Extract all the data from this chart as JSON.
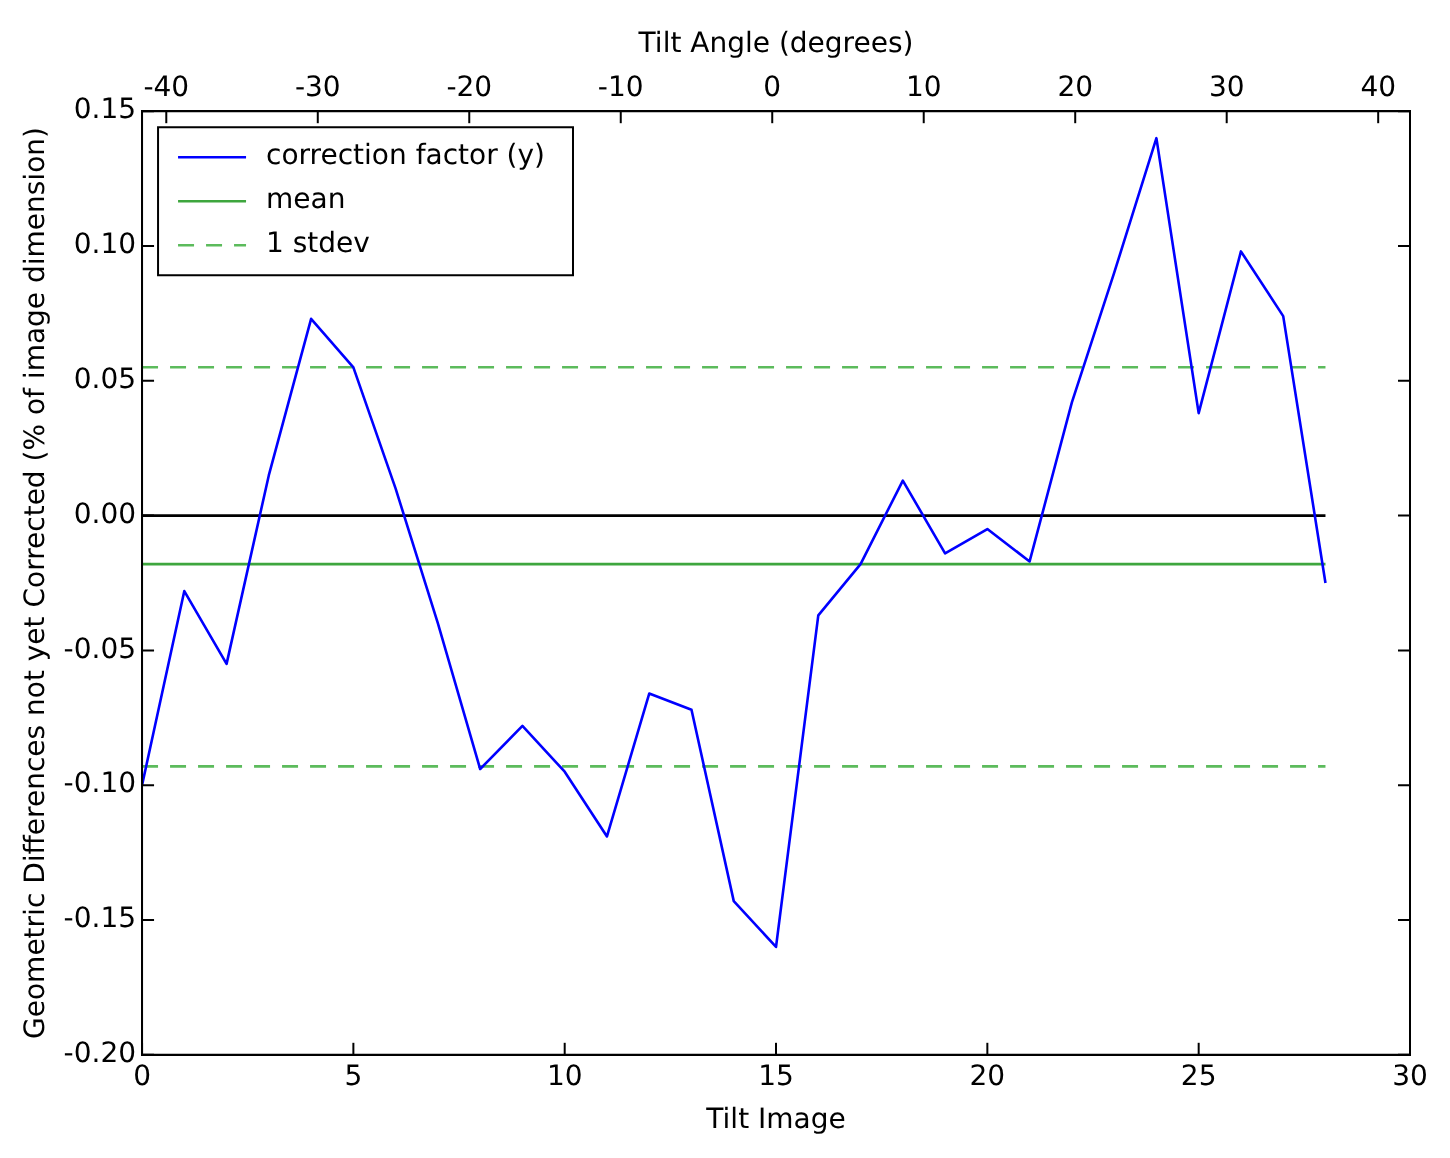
{
  "chart_data": {
    "type": "line",
    "xlabel": "Tilt Image",
    "ylabel": "Geometric Differences not yet Corrected (% of image dimension)",
    "x2label": "Tilt Angle (degrees)",
    "xlim": [
      0,
      30
    ],
    "xticks": [
      0,
      5,
      10,
      15,
      20,
      25,
      30
    ],
    "x2lim": [
      -41.6,
      42.1
    ],
    "x2ticks": [
      -40,
      -30,
      -20,
      -10,
      0,
      10,
      20,
      30,
      40
    ],
    "ylim": [
      -0.2,
      0.15
    ],
    "yticks": [
      {
        "value": -0.2,
        "label": "-0.20"
      },
      {
        "value": -0.15,
        "label": "-0.15"
      },
      {
        "value": -0.1,
        "label": "-0.10"
      },
      {
        "value": -0.05,
        "label": "-0.05"
      },
      {
        "value": 0,
        "label": "0.00"
      },
      {
        "value": 0.05,
        "label": "0.05"
      },
      {
        "value": 0.1,
        "label": "0.10"
      },
      {
        "value": 0.15,
        "label": "0.15"
      }
    ],
    "grid": false,
    "legend": "top left",
    "marker": "none",
    "ref_lines": [
      {
        "axis": "y",
        "value": 0,
        "color": "#000000"
      }
    ],
    "series": [
      {
        "name": "correction factor (y)",
        "color": "#0000ff",
        "line_style": "solid",
        "x": [
          0,
          1,
          2,
          3,
          4,
          5,
          6,
          7,
          8,
          9,
          10,
          11,
          12,
          13,
          14,
          15,
          16,
          17,
          18,
          19,
          20,
          21,
          22,
          23,
          24,
          25,
          26,
          27,
          28
        ],
        "values": [
          -0.1,
          -0.028,
          -0.055,
          0.015,
          0.073,
          0.055,
          0.01,
          -0.04,
          -0.094,
          -0.078,
          -0.095,
          -0.119,
          -0.066,
          -0.072,
          -0.143,
          -0.16,
          -0.037,
          -0.018,
          0.013,
          -0.014,
          -0.005,
          -0.017,
          0.042,
          0.09,
          0.14,
          0.038,
          0.098,
          0.074,
          -0.025
        ]
      },
      {
        "name": "mean",
        "color": "#3ea63e",
        "line_style": "solid",
        "x": [
          0,
          28
        ],
        "values": [
          -0.018,
          -0.018
        ]
      },
      {
        "name": "1 stdev",
        "color": "#5cbb5c",
        "line_style": "dashed",
        "x": [
          0,
          28
        ],
        "values": [
          0.055,
          0.055
        ]
      },
      {
        "color": "#5cbb5c",
        "line_style": "dashed",
        "x": [
          0,
          28
        ],
        "values": [
          -0.093,
          -0.093
        ]
      }
    ]
  }
}
